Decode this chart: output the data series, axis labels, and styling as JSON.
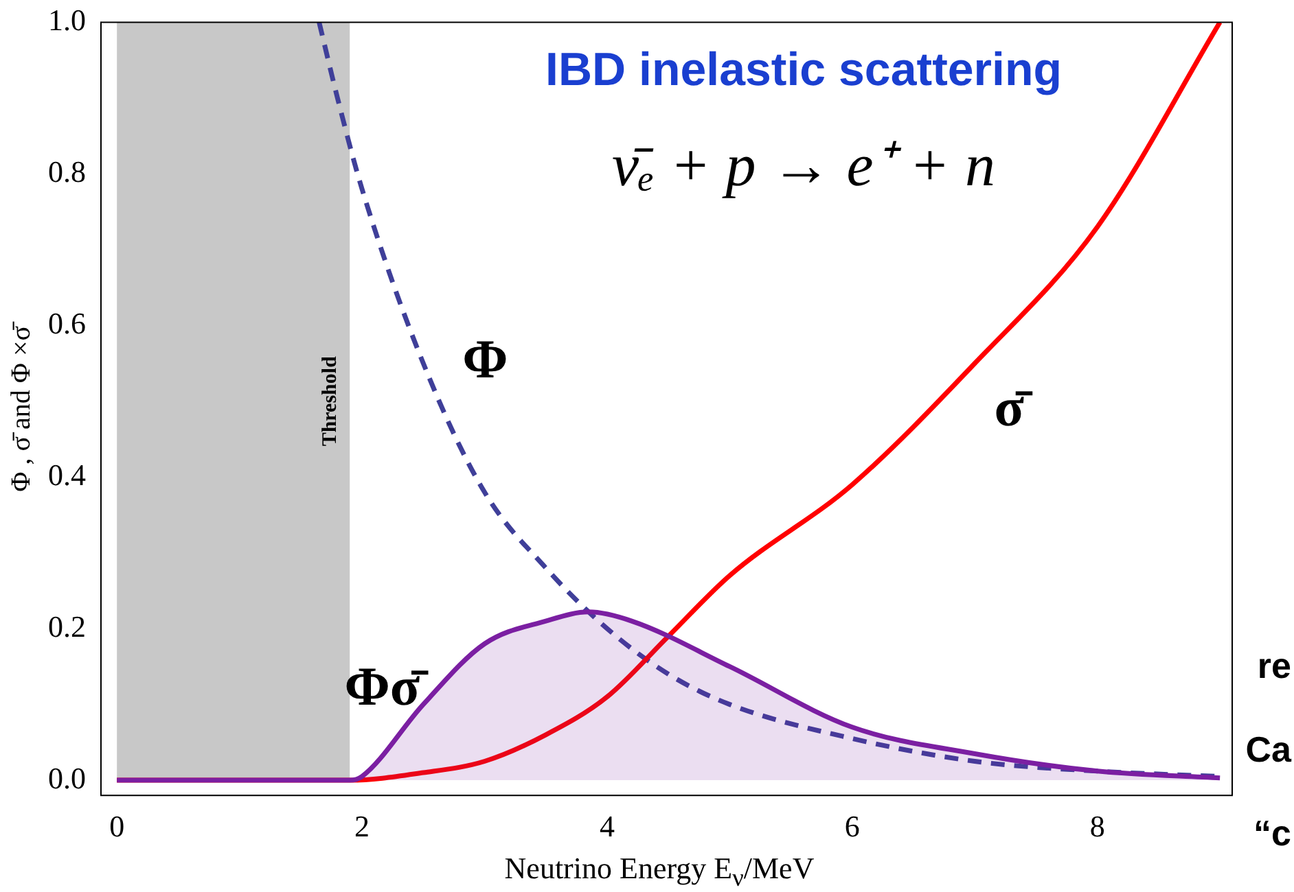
{
  "chart_data": {
    "type": "line",
    "title": "IBD inelastic scattering",
    "xlabel": "Neutrino Energy E$_{ν}$/MeV",
    "ylabel": "Φ , σ̄ and Φ ×σ̄",
    "xlim": [
      -0.13,
      9.1
    ],
    "ylim": [
      -0.02,
      1.0
    ],
    "xticks": [
      0,
      2,
      4,
      6,
      8
    ],
    "yticks": [
      {
        "value": 0,
        "label": "0.0"
      },
      {
        "value": 0.2,
        "label": "0.2"
      },
      {
        "value": 0.4,
        "label": "0.4"
      },
      {
        "value": 0.6,
        "label": "0.6"
      },
      {
        "value": 0.8,
        "label": "0.8"
      },
      {
        "value": 1.0,
        "label": "1.0"
      }
    ],
    "grid": false,
    "legend": false,
    "marker": "none",
    "bands": [
      {
        "axis": "x",
        "from": 0,
        "to": 1.9,
        "label": "Threshold",
        "color": "#c8c8c8"
      }
    ],
    "series": [
      {
        "type": "area",
        "name": "Φσ̄",
        "color": "#7b1fa2",
        "x": [
          0,
          1.9,
          2,
          2.5,
          3,
          3.5,
          3.85,
          4.2,
          5,
          6,
          7,
          8,
          9
        ],
        "values": [
          0,
          0,
          0.005,
          0.1,
          0.18,
          0.21,
          0.222,
          0.21,
          0.15,
          0.07,
          0.035,
          0.012,
          0.003
        ]
      },
      {
        "type": "line",
        "name": "σ̄",
        "color": "#ff0000",
        "line_style": "solid",
        "x": [
          0,
          1.9,
          2.5,
          3,
          3.5,
          4,
          4.5,
          5,
          6,
          7,
          8,
          9
        ],
        "values": [
          0,
          0,
          0.01,
          0.025,
          0.06,
          0.11,
          0.19,
          0.27,
          0.39,
          0.55,
          0.73,
          1.0
        ]
      },
      {
        "type": "line",
        "name": "Φ",
        "color": "#3f3f99",
        "line_style": "dashed",
        "x": [
          1.65,
          1.8,
          2,
          2.5,
          3,
          3.5,
          4,
          4.5,
          5,
          6,
          7,
          8,
          9
        ],
        "values": [
          1.0,
          0.9,
          0.78,
          0.55,
          0.38,
          0.28,
          0.2,
          0.14,
          0.1,
          0.055,
          0.025,
          0.012,
          0.005
        ]
      }
    ],
    "annotations": [
      "ν̄ₑ + p → e⁺ + n",
      "re",
      "Ca",
      "“c"
    ]
  }
}
